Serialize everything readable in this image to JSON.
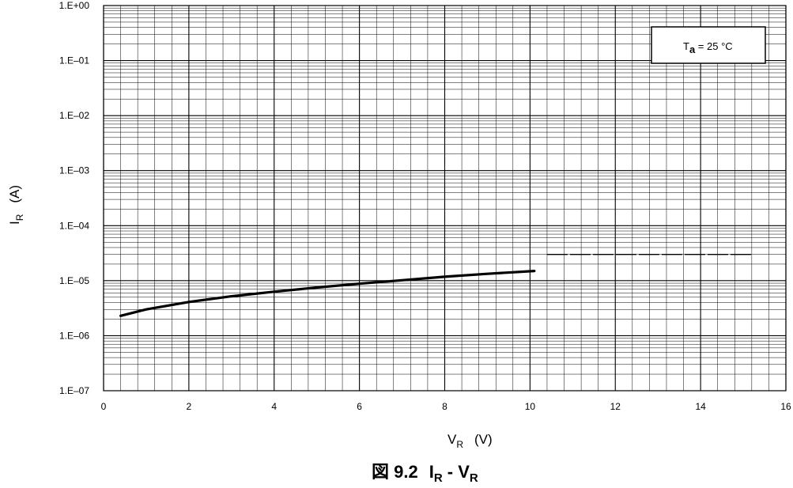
{
  "chart_data": {
    "type": "line",
    "caption": {
      "figure": "図 9.2",
      "main_1": "I",
      "sub_1": "R",
      "separator": " - ",
      "main_2": "V",
      "sub_2": "R"
    },
    "xlabel": {
      "main": "V",
      "sub": "R",
      "unit": "(V)"
    },
    "ylabel": {
      "main": "I",
      "sub": "R",
      "unit": "(A)"
    },
    "xlim": [
      0,
      16
    ],
    "ylim": [
      1e-07,
      1
    ],
    "yscale": "log",
    "x_ticks": [
      "0",
      "2",
      "4",
      "6",
      "8",
      "10",
      "12",
      "14",
      "16"
    ],
    "y_ticks": [
      "1.E+00",
      "1.E–01",
      "1.E–02",
      "1.E–03",
      "1.E–04",
      "1.E–05",
      "1.E–06",
      "1.E–07"
    ],
    "grid": true,
    "annotation": {
      "main": "T",
      "sub": "a",
      "rest": " = 25 °C",
      "position": "top-right"
    },
    "series": [
      {
        "style": "solid",
        "x": [
          0.4,
          1,
          2,
          3,
          4,
          5,
          6,
          7,
          8,
          9,
          10.1
        ],
        "y": [
          2.3e-06,
          3e-06,
          4.1e-06,
          5.2e-06,
          6.3e-06,
          7.5e-06,
          8.8e-06,
          1.02e-05,
          1.18e-05,
          1.33e-05,
          1.5e-05
        ]
      },
      {
        "style": "dashed",
        "x": [
          10.4,
          15.2
        ],
        "y": [
          3e-05,
          3e-05
        ]
      }
    ]
  }
}
